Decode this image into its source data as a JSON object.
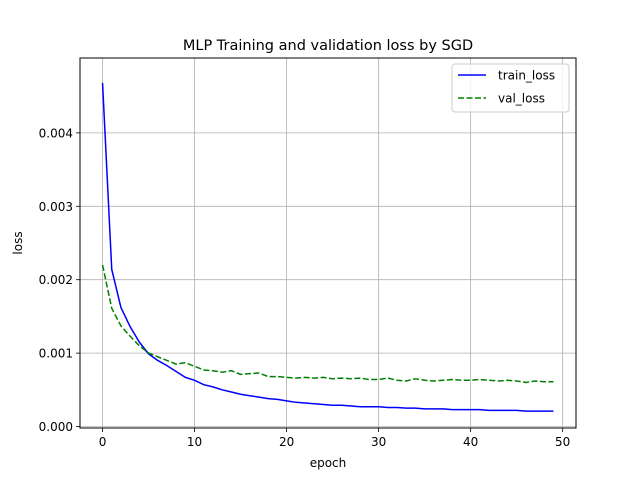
{
  "chart_data": {
    "type": "line",
    "title": "MLP Training and validation loss by SGD",
    "xlabel": "epoch",
    "ylabel": "loss",
    "xlim": [
      -2.45,
      51.45
    ],
    "ylim": [
      -2e-05,
      0.00502
    ],
    "xticks": [
      0,
      10,
      20,
      30,
      40,
      50
    ],
    "xtick_labels": [
      "0",
      "10",
      "20",
      "30",
      "40",
      "50"
    ],
    "yticks": [
      0,
      0.001,
      0.002,
      0.003,
      0.004
    ],
    "ytick_labels": [
      "0.000",
      "0.001",
      "0.002",
      "0.003",
      "0.004"
    ],
    "grid": true,
    "legend_position": "upper-right",
    "x": [
      0,
      1,
      2,
      3,
      4,
      5,
      6,
      7,
      8,
      9,
      10,
      11,
      12,
      13,
      14,
      15,
      16,
      17,
      18,
      19,
      20,
      21,
      22,
      23,
      24,
      25,
      26,
      27,
      28,
      29,
      30,
      31,
      32,
      33,
      34,
      35,
      36,
      37,
      38,
      39,
      40,
      41,
      42,
      43,
      44,
      45,
      46,
      47,
      48,
      49
    ],
    "series": [
      {
        "name": "train_loss",
        "color": "#0000ff",
        "dash": "solid",
        "values": [
          0.00468,
          0.00214,
          0.00162,
          0.00136,
          0.00115,
          0.00099,
          0.0009,
          0.00083,
          0.00075,
          0.00067,
          0.00063,
          0.00057,
          0.00054,
          0.0005,
          0.00047,
          0.00044,
          0.00042,
          0.0004,
          0.00038,
          0.00037,
          0.00035,
          0.00033,
          0.00032,
          0.00031,
          0.0003,
          0.00029,
          0.00029,
          0.00028,
          0.00027,
          0.00027,
          0.00027,
          0.00026,
          0.00026,
          0.00025,
          0.00025,
          0.00024,
          0.00024,
          0.00024,
          0.00023,
          0.00023,
          0.00023,
          0.00023,
          0.00022,
          0.00022,
          0.00022,
          0.00022,
          0.00021,
          0.00021,
          0.00021,
          0.00021
        ]
      },
      {
        "name": "val_loss",
        "color": "#008000",
        "dash": "dashed",
        "values": [
          0.0022,
          0.00161,
          0.00137,
          0.00123,
          0.0011,
          0.001,
          0.00095,
          0.0009,
          0.00085,
          0.00087,
          0.00082,
          0.00077,
          0.00076,
          0.00074,
          0.00076,
          0.00071,
          0.00072,
          0.00073,
          0.00068,
          0.00068,
          0.00067,
          0.00066,
          0.00067,
          0.00066,
          0.00067,
          0.00065,
          0.00066,
          0.00065,
          0.00066,
          0.00064,
          0.00064,
          0.00066,
          0.00063,
          0.00062,
          0.00065,
          0.00063,
          0.00062,
          0.00063,
          0.00064,
          0.00063,
          0.00063,
          0.00064,
          0.00063,
          0.00062,
          0.00063,
          0.00062,
          0.0006,
          0.00062,
          0.00061,
          0.00061
        ]
      }
    ]
  }
}
